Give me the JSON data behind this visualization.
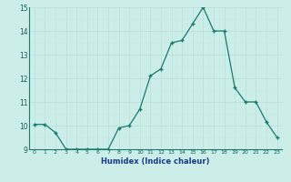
{
  "x": [
    0,
    1,
    2,
    3,
    4,
    5,
    6,
    7,
    8,
    9,
    10,
    11,
    12,
    13,
    14,
    15,
    16,
    17,
    18,
    19,
    20,
    21,
    22,
    23
  ],
  "y": [
    10.05,
    10.05,
    9.7,
    9.0,
    9.0,
    9.0,
    9.0,
    9.0,
    9.9,
    10.0,
    10.7,
    12.1,
    12.4,
    13.5,
    13.6,
    14.3,
    15.0,
    14.0,
    14.0,
    11.6,
    11.0,
    11.0,
    10.15,
    9.5
  ],
  "ylim": [
    9,
    15
  ],
  "yticks": [
    9,
    10,
    11,
    12,
    13,
    14,
    15
  ],
  "xticks": [
    0,
    1,
    2,
    3,
    4,
    5,
    6,
    7,
    8,
    9,
    10,
    11,
    12,
    13,
    14,
    15,
    16,
    17,
    18,
    19,
    20,
    21,
    22,
    23
  ],
  "xlabel": "Humidex (Indice chaleur)",
  "line_color": "#1a7a6e",
  "marker_color": "#1a7a6e",
  "bg_color": "#cceee8",
  "grid_major_color": "#b8ddd8",
  "grid_minor_color": "#c8eae6"
}
